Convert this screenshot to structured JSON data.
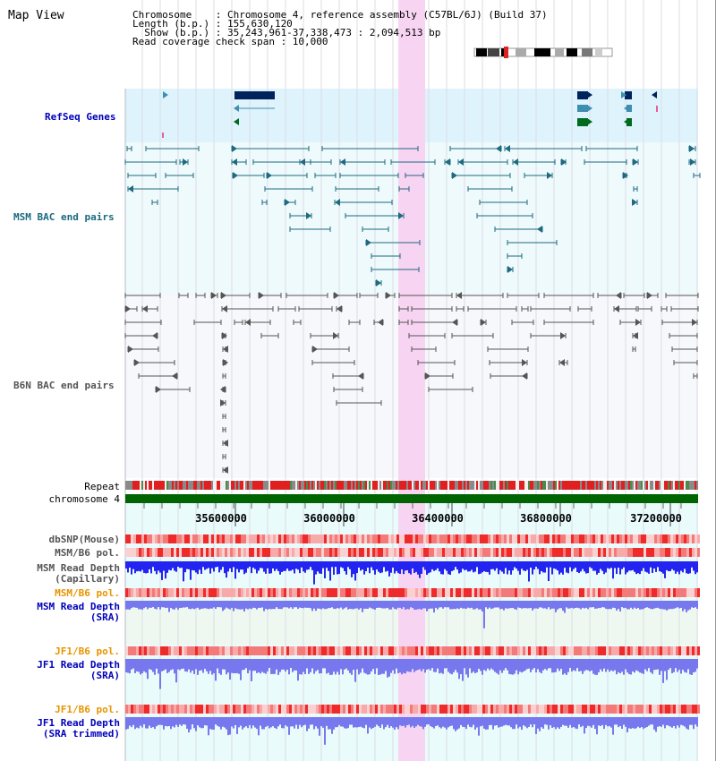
{
  "header": {
    "title": "Map View",
    "chromosome": "Chromosome    : Chromosome 4, reference assembly (C57BL/6J) (Build 37)",
    "length": "Length (b.p.) : 155,630,120",
    "show": "  Show (b.p.) : 35,243,961-37,338,473 : 2,094,513 bp",
    "read_coverage": "Read coverage check span : 10,000"
  },
  "tracks": {
    "refseq": "RefSeq Genes",
    "msm_bac": "MSM BAC end pairs",
    "b6n_bac": "B6N BAC end pairs",
    "repeat": "Repeat",
    "chromosome": "chromosome 4",
    "dbsnp": "dbSNP(Mouse)",
    "msm_pol": "MSM/B6 pol.",
    "msm_depth_1": "MSM Read Depth",
    "msm_depth_2": "(Capillary)",
    "msm_pol_sra": "MSM/B6 pol.",
    "msm_sra_1": "MSM Read Depth",
    "msm_sra_2": "(SRA)",
    "jf1_pol": "JF1/B6 pol.",
    "jf1_depth_1": "JF1 Read Depth",
    "jf1_depth_2": "(SRA)",
    "jf1_pol2": "JF1/B6 pol.",
    "jf1_trim_1": "JF1 Read Depth",
    "jf1_trim_2": "(SRA trimmed)"
  },
  "axis": {
    "ticks": [
      "35600000",
      "36000000",
      "36400000",
      "36800000",
      "37200000"
    ]
  },
  "colors": {
    "refseq_bg": "#def3fb",
    "bac_bg": "#eefafb",
    "highlight": "#f8d4f3",
    "gene_dark": "#00235e",
    "gene_mid": "#3c8fb1",
    "gene_green": "#006b1f",
    "msm_bac": "#1f6a80",
    "b6n_bac": "#555555",
    "chrom_bar": "#006400",
    "depth_blue": "#2424f0",
    "depth_light": "#7878ee",
    "label_blue": "#0000bb",
    "label_orange": "#e89400",
    "label_teal": "#1a6a80"
  }
}
